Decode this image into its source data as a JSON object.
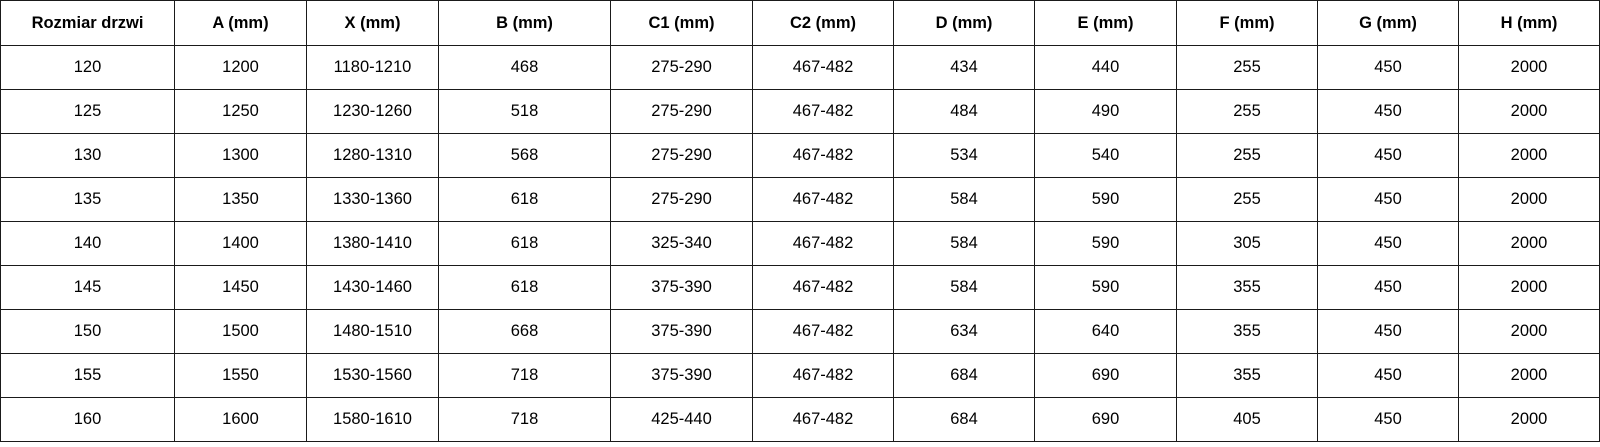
{
  "table": {
    "headers": [
      "Rozmiar drzwi",
      "A (mm)",
      "X (mm)",
      "B (mm)",
      "C1 (mm)",
      "C2 (mm)",
      "D (mm)",
      "E (mm)",
      "F (mm)",
      "G (mm)",
      "H (mm)"
    ],
    "rows": [
      [
        "120",
        "1200",
        "1180-1210",
        "468",
        "275-290",
        "467-482",
        "434",
        "440",
        "255",
        "450",
        "2000"
      ],
      [
        "125",
        "1250",
        "1230-1260",
        "518",
        "275-290",
        "467-482",
        "484",
        "490",
        "255",
        "450",
        "2000"
      ],
      [
        "130",
        "1300",
        "1280-1310",
        "568",
        "275-290",
        "467-482",
        "534",
        "540",
        "255",
        "450",
        "2000"
      ],
      [
        "135",
        "1350",
        "1330-1360",
        "618",
        "275-290",
        "467-482",
        "584",
        "590",
        "255",
        "450",
        "2000"
      ],
      [
        "140",
        "1400",
        "1380-1410",
        "618",
        "325-340",
        "467-482",
        "584",
        "590",
        "305",
        "450",
        "2000"
      ],
      [
        "145",
        "1450",
        "1430-1460",
        "618",
        "375-390",
        "467-482",
        "584",
        "590",
        "355",
        "450",
        "2000"
      ],
      [
        "150",
        "1500",
        "1480-1510",
        "668",
        "375-390",
        "467-482",
        "634",
        "640",
        "355",
        "450",
        "2000"
      ],
      [
        "155",
        "1550",
        "1530-1560",
        "718",
        "375-390",
        "467-482",
        "684",
        "690",
        "355",
        "450",
        "2000"
      ],
      [
        "160",
        "1600",
        "1580-1610",
        "718",
        "425-440",
        "467-482",
        "684",
        "690",
        "405",
        "450",
        "2000"
      ]
    ]
  }
}
